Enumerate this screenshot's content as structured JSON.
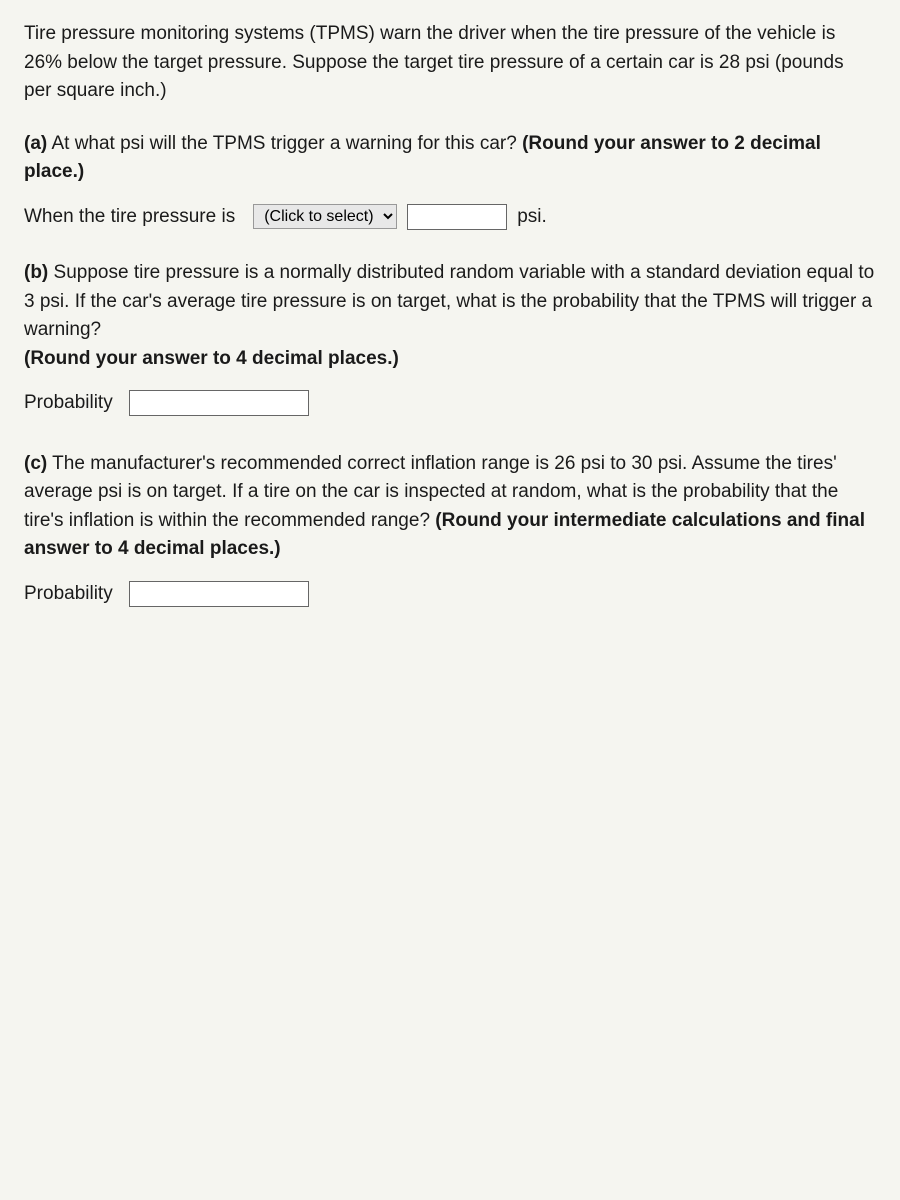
{
  "intro": "Tire pressure monitoring systems (TPMS) warn the driver when the tire pressure of the vehicle is 26% below the target pressure. Suppose the target tire pressure of a certain car is 28 psi (pounds per square inch.)",
  "partA": {
    "label": "(a)",
    "text": "At what psi will the TPMS trigger a warning for this car?",
    "roundNote": "(Round your answer to 2 decimal place.)"
  },
  "answerA": {
    "prefix": "When the tire pressure is",
    "selectPlaceholder": "(Click to select)",
    "inputValue": "",
    "unit": "psi."
  },
  "partB": {
    "label": "(b)",
    "text": "Suppose tire pressure is a normally distributed random variable with a standard deviation equal to 3 psi. If the car's average tire pressure is on target, what is the probability that the TPMS will trigger a warning?",
    "roundNote": "(Round your answer to 4 decimal places.)"
  },
  "answerB": {
    "label": "Probability",
    "inputValue": ""
  },
  "partC": {
    "label": "(c)",
    "text": "The manufacturer's recommended correct inflation range is 26 psi to 30 psi. Assume the tires' average psi is on target. If a tire on the car is inspected at random, what is the probability that the tire's inflation is within the recommended range?",
    "roundNote": "(Round your intermediate calculations and final answer to 4 decimal places.)"
  },
  "answerC": {
    "label": "Probability",
    "inputValue": ""
  },
  "styling": {
    "background_color": "#f5f5f0",
    "text_color": "#1a1a1a",
    "font_size": 19,
    "input_border_color": "#666666",
    "select_bg_color": "#e8e8e8"
  }
}
